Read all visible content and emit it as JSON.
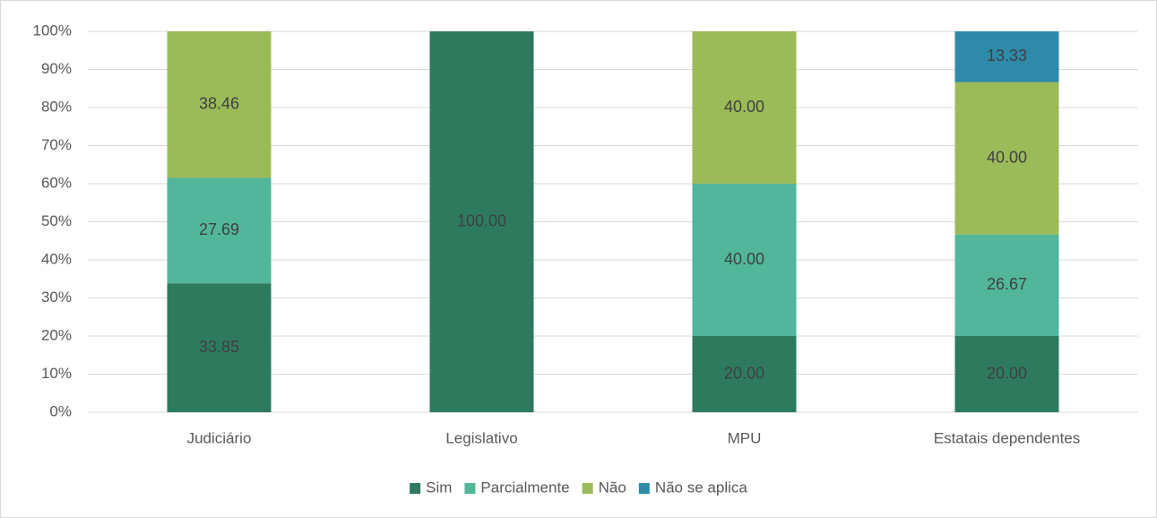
{
  "chart_data": {
    "type": "stacked_bar",
    "categories": [
      "Judiciário",
      "Legislativo",
      "MPU",
      "Estatais dependentes"
    ],
    "series": [
      {
        "name": "Sim",
        "color": "#2e7a5e",
        "values": [
          33.85,
          100,
          20,
          20
        ],
        "value_labels": [
          "33.85",
          "100.00",
          "20.00",
          "20.00"
        ]
      },
      {
        "name": "Parcialmente",
        "color": "#52b69a",
        "values": [
          27.69,
          null,
          40,
          26.67
        ],
        "value_labels": [
          "27.69",
          null,
          "40.00",
          "26.67"
        ]
      },
      {
        "name": "Não",
        "color": "#9bbb59",
        "values": [
          38.46,
          null,
          40,
          40
        ],
        "value_labels": [
          "38.46",
          null,
          "40.00",
          "40.00"
        ]
      },
      {
        "name": "Não se aplica",
        "color": "#2e8aa8",
        "values": [
          null,
          null,
          null,
          13.33
        ],
        "value_labels": [
          null,
          null,
          null,
          "13.33"
        ]
      }
    ],
    "ylim": [
      0,
      100
    ],
    "yticks": [
      {
        "value": 0,
        "label": "0%"
      },
      {
        "value": 10,
        "label": "10%"
      },
      {
        "value": 20,
        "label": "20%"
      },
      {
        "value": 30,
        "label": "30%"
      },
      {
        "value": 40,
        "label": "40%"
      },
      {
        "value": 50,
        "label": "50%"
      },
      {
        "value": 60,
        "label": "60%"
      },
      {
        "value": 70,
        "label": "70%"
      },
      {
        "value": 80,
        "label": "80%"
      },
      {
        "value": 90,
        "label": "90%"
      },
      {
        "value": 100,
        "label": "100%"
      }
    ],
    "grid": true,
    "legend": "bottom"
  }
}
